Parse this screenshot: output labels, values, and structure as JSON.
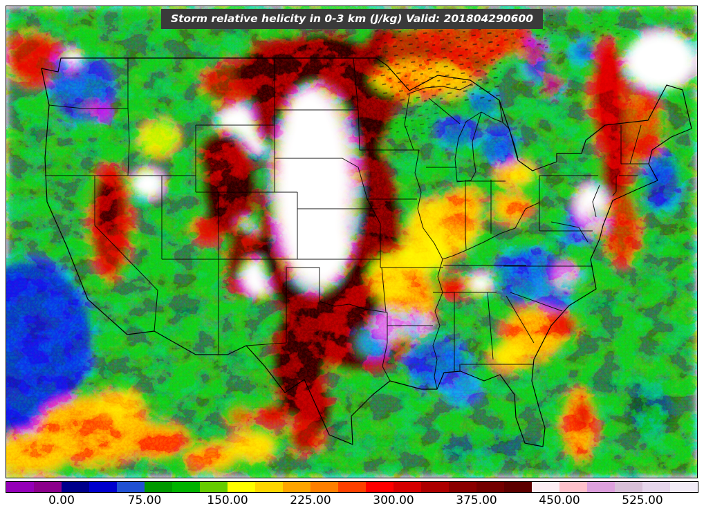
{
  "title_bar": {
    "text": "Storm relative helicity in 0-3 km (J/kg) Valid: 201804290600"
  },
  "colorbar": {
    "min": -50,
    "max": 575,
    "units": "J/kg",
    "tick_labels": [
      "0.00",
      "75.00",
      "150.00",
      "225.00",
      "300.00",
      "375.00",
      "450.00",
      "525.00"
    ],
    "tick_values": [
      0,
      75,
      150,
      225,
      300,
      375,
      450,
      525
    ],
    "segments": [
      {
        "from": -50,
        "to": -25,
        "color": "#9400b8"
      },
      {
        "from": -25,
        "to": 0,
        "color": "#8b008b"
      },
      {
        "from": 0,
        "to": 25,
        "color": "#00008b"
      },
      {
        "from": 25,
        "to": 50,
        "color": "#0000cd"
      },
      {
        "from": 50,
        "to": 75,
        "color": "#2151d3"
      },
      {
        "from": 75,
        "to": 100,
        "color": "#009900"
      },
      {
        "from": 100,
        "to": 125,
        "color": "#00b300"
      },
      {
        "from": 125,
        "to": 150,
        "color": "#66cc00"
      },
      {
        "from": 150,
        "to": 175,
        "color": "#ffff00"
      },
      {
        "from": 175,
        "to": 200,
        "color": "#ffd700"
      },
      {
        "from": 200,
        "to": 225,
        "color": "#ffa500"
      },
      {
        "from": 225,
        "to": 250,
        "color": "#ff7f00"
      },
      {
        "from": 250,
        "to": 275,
        "color": "#ff4000"
      },
      {
        "from": 275,
        "to": 300,
        "color": "#ff0000"
      },
      {
        "from": 300,
        "to": 325,
        "color": "#d60000"
      },
      {
        "from": 325,
        "to": 350,
        "color": "#ad0000"
      },
      {
        "from": 350,
        "to": 375,
        "color": "#8b0000"
      },
      {
        "from": 375,
        "to": 400,
        "color": "#740000"
      },
      {
        "from": 400,
        "to": 425,
        "color": "#5d0000"
      },
      {
        "from": 425,
        "to": 450,
        "color": "#fdeef4"
      },
      {
        "from": 450,
        "to": 475,
        "color": "#ffc0cb"
      },
      {
        "from": 475,
        "to": 500,
        "color": "#dda0dd"
      },
      {
        "from": 500,
        "to": 525,
        "color": "#d8bfd8"
      },
      {
        "from": 525,
        "to": 550,
        "color": "#e6d6ec"
      },
      {
        "from": 550,
        "to": 575,
        "color": "#f2ecf7"
      }
    ]
  }
}
